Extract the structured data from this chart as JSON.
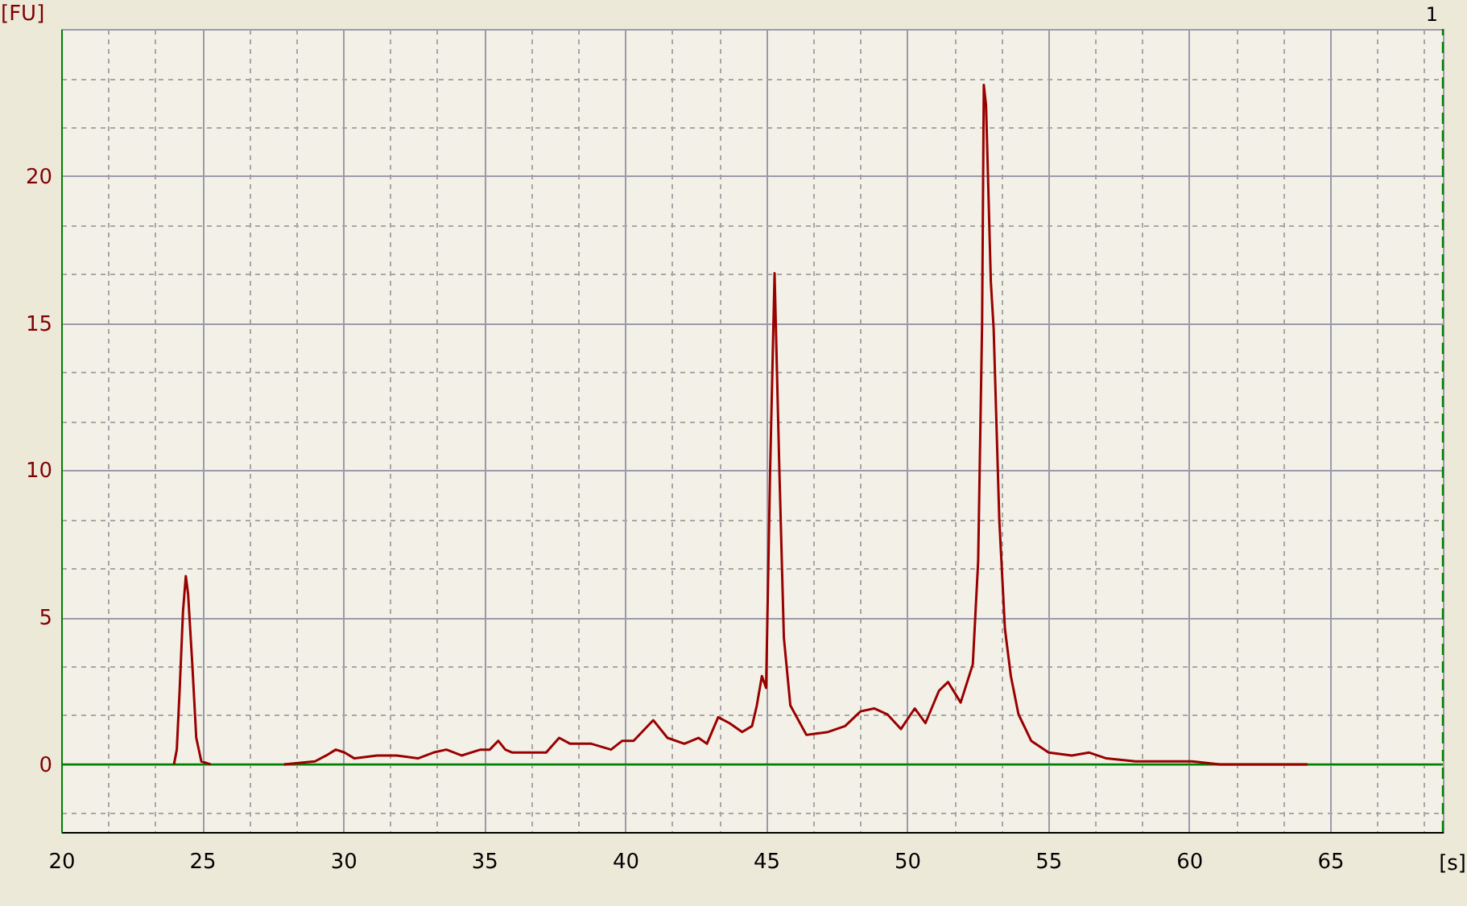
{
  "chart_data": {
    "type": "line",
    "xlabel": "[s]",
    "ylabel": "[FU]",
    "x": [
      24.0,
      24.1,
      24.2,
      24.32,
      24.42,
      24.5,
      24.65,
      24.79,
      24.97,
      25.3,
      26.5,
      27.9,
      29.0,
      29.4,
      29.74,
      30.05,
      30.4,
      31.2,
      31.9,
      32.65,
      33.2,
      33.66,
      34.2,
      34.87,
      35.2,
      35.5,
      35.75,
      36.0,
      37.2,
      37.66,
      38.05,
      38.8,
      39.5,
      39.9,
      40.3,
      41.0,
      41.5,
      42.1,
      42.6,
      42.9,
      43.3,
      43.7,
      44.15,
      44.5,
      44.67,
      44.85,
      45.0,
      45.14,
      45.3,
      45.47,
      45.63,
      45.86,
      46.43,
      47.2,
      47.8,
      48.35,
      48.83,
      49.3,
      49.78,
      50.27,
      50.65,
      51.13,
      51.45,
      51.9,
      52.33,
      52.52,
      52.66,
      52.72,
      52.8,
      52.97,
      53.07,
      53.27,
      53.47,
      53.68,
      53.95,
      54.4,
      55.02,
      55.84,
      56.46,
      57.07,
      58.1,
      59.1,
      60.1,
      61.1,
      62.2,
      64.2
    ],
    "series": [
      {
        "color": "#990000",
        "values": [
          0,
          0.5,
          2.5,
          5.2,
          6.4,
          5.8,
          3.4,
          0.9,
          0.1,
          0.0,
          null,
          0.0,
          0.1,
          0.3,
          0.5,
          0.4,
          0.2,
          0.3,
          0.3,
          0.2,
          0.4,
          0.5,
          0.3,
          0.5,
          0.5,
          0.8,
          0.5,
          0.4,
          0.4,
          0.9,
          0.7,
          0.7,
          0.5,
          0.8,
          0.8,
          1.5,
          0.9,
          0.7,
          0.9,
          0.7,
          1.6,
          1.4,
          1.1,
          1.3,
          2.0,
          3.0,
          2.6,
          9.9,
          16.7,
          10.0,
          4.3,
          2.0,
          1.0,
          1.1,
          1.3,
          1.8,
          1.9,
          1.7,
          1.2,
          1.9,
          1.4,
          2.5,
          2.8,
          2.1,
          3.4,
          6.9,
          15.0,
          23.1,
          22.4,
          16.4,
          14.8,
          8.3,
          4.6,
          3.0,
          1.7,
          0.8,
          0.4,
          0.3,
          0.4,
          0.2,
          0.1,
          0.1,
          0.1,
          0.0,
          0.0,
          0.0
        ]
      }
    ],
    "xlim": [
      20,
      69
    ],
    "ylim": [
      -2.3,
      25
    ],
    "xticks": [
      20,
      {
        "value": 21.67,
        "label": null
      },
      {
        "value": 23.33,
        "label": null
      },
      25,
      {
        "value": 26.67,
        "label": null
      },
      {
        "value": 28.33,
        "label": null
      },
      30,
      {
        "value": 31.67,
        "label": null
      },
      {
        "value": 33.33,
        "label": null
      },
      35,
      {
        "value": 36.67,
        "label": null
      },
      {
        "value": 38.33,
        "label": null
      },
      40,
      {
        "value": 41.67,
        "label": null
      },
      {
        "value": 43.33,
        "label": null
      },
      45,
      {
        "value": 46.67,
        "label": null
      },
      {
        "value": 48.33,
        "label": null
      },
      50,
      {
        "value": 51.67,
        "label": null
      },
      {
        "value": 53.33,
        "label": null
      },
      55,
      {
        "value": 56.67,
        "label": null
      },
      {
        "value": 58.33,
        "label": null
      },
      60,
      {
        "value": 61.67,
        "label": null
      },
      {
        "value": 63.33,
        "label": null
      },
      65,
      {
        "value": 66.67,
        "label": null
      },
      {
        "value": 68.33,
        "label": null
      }
    ],
    "yticks": [
      {
        "value": -1.67,
        "label": null
      },
      0,
      {
        "value": 1.67,
        "label": null
      },
      {
        "value": 3.33,
        "label": null
      },
      5,
      {
        "value": 6.67,
        "label": null
      },
      {
        "value": 8.33,
        "label": null
      },
      10,
      {
        "value": 11.67,
        "label": null
      },
      {
        "value": 13.33,
        "label": null
      },
      15,
      {
        "value": 16.67,
        "label": null
      },
      {
        "value": 18.33,
        "label": null
      },
      20,
      {
        "value": 21.67,
        "label": null
      },
      {
        "value": 23.33,
        "label": null
      }
    ],
    "grid": true,
    "ref_lines": [
      {
        "axis": "y",
        "value": 0,
        "color": "#008000",
        "line_style": "solid"
      },
      {
        "axis": "x",
        "value": 69,
        "color": "#008000",
        "line_style": "dashed"
      }
    ],
    "annotations": [
      {
        "text": "1",
        "x": 69,
        "y": 25
      }
    ]
  }
}
